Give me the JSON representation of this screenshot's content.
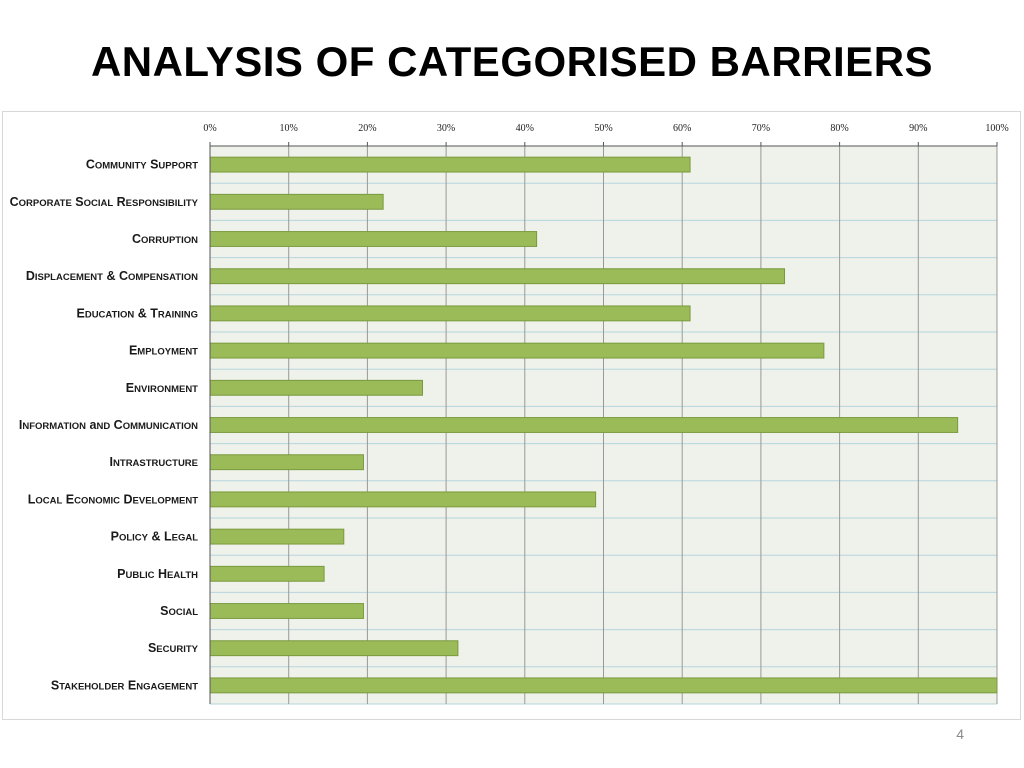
{
  "slide": {
    "title": "ANALYSIS OF CATEGORISED BARRIERS",
    "page_number": "4"
  },
  "colors": {
    "bar_fill": "#9bbb59",
    "bar_stroke": "#7a9a3e",
    "plot_bg": "#eef2ea",
    "grid": "#b7d4de"
  },
  "chart_data": {
    "type": "bar",
    "orientation": "horizontal",
    "title": "",
    "xlabel": "",
    "ylabel": "",
    "xlim": [
      0,
      100
    ],
    "x_ticks": [
      "0%",
      "10%",
      "20%",
      "30%",
      "40%",
      "50%",
      "60%",
      "70%",
      "80%",
      "90%",
      "100%"
    ],
    "categories": [
      "Community Support",
      "Corporate Social Responsibility",
      "Corruption",
      "Displacement & Compensation",
      "Education & Training",
      "Employment",
      "Environment",
      "Information and Communication",
      "Intrastructure",
      "Local Economic Development",
      "Policy & Legal",
      "Public Health",
      "Social",
      "Security",
      "Stakeholder Engagement"
    ],
    "values": [
      61,
      22,
      41.5,
      73,
      61,
      78,
      27,
      95,
      19.5,
      49,
      17,
      14.5,
      19.5,
      31.5,
      100
    ],
    "grid": true,
    "legend": "none"
  }
}
